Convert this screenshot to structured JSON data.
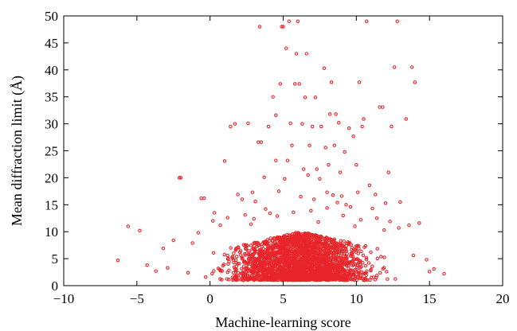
{
  "chart_data": {
    "type": "scatter",
    "title": "",
    "xlabel": "Machine-learning score",
    "ylabel": "Mean diffraction limit (Å)",
    "xlim": [
      -10,
      20
    ],
    "ylim": [
      0,
      50
    ],
    "xticks": [
      -10,
      -5,
      0,
      5,
      10,
      15,
      20
    ],
    "yticks": [
      0,
      5,
      10,
      15,
      20,
      25,
      30,
      35,
      40,
      45,
      50
    ],
    "xtick_labels": [
      "−10",
      "−5",
      "0",
      "5",
      "10",
      "15",
      "20"
    ],
    "ytick_labels": [
      "0",
      "5",
      "10",
      "15",
      "20",
      "25",
      "30",
      "35",
      "40",
      "45",
      "50"
    ],
    "grid": false,
    "legend": "none",
    "marker_color": "#e8262b",
    "series": [
      {
        "points": [
          [
            -6.3,
            4.7
          ],
          [
            -5.6,
            11.0
          ],
          [
            -4.8,
            10.2
          ],
          [
            -4.3,
            3.8
          ],
          [
            -3.7,
            2.7
          ],
          [
            -3.2,
            6.9
          ],
          [
            -2.9,
            3.3
          ],
          [
            -2.1,
            20.0
          ],
          [
            -2.0,
            20.0
          ],
          [
            -0.6,
            16.2
          ],
          [
            -0.4,
            16.2
          ],
          [
            0.3,
            13.5
          ],
          [
            0.7,
            11.2
          ],
          [
            1.0,
            23.1
          ],
          [
            1.4,
            29.5
          ],
          [
            1.7,
            30.0
          ],
          [
            1.9,
            16.9
          ],
          [
            2.2,
            16.0
          ],
          [
            2.6,
            30.1
          ],
          [
            2.9,
            17.3
          ],
          [
            3.1,
            15.6
          ],
          [
            3.3,
            26.6
          ],
          [
            3.5,
            26.6
          ],
          [
            3.4,
            48.0
          ],
          [
            3.7,
            20.1
          ],
          [
            3.8,
            14.2
          ],
          [
            4.0,
            29.5
          ],
          [
            4.1,
            13.4
          ],
          [
            4.3,
            35.0
          ],
          [
            4.5,
            31.6
          ],
          [
            4.5,
            23.2
          ],
          [
            4.7,
            17.5
          ],
          [
            4.8,
            37.4
          ],
          [
            4.9,
            48.0
          ],
          [
            5.0,
            48.0
          ],
          [
            5.1,
            19.8
          ],
          [
            5.2,
            44.0
          ],
          [
            5.3,
            23.2
          ],
          [
            5.4,
            49.0
          ],
          [
            5.5,
            30.1
          ],
          [
            5.6,
            26.0
          ],
          [
            5.8,
            37.4
          ],
          [
            5.9,
            43.0
          ],
          [
            6.0,
            49.0
          ],
          [
            6.1,
            37.4
          ],
          [
            6.2,
            16.5
          ],
          [
            6.3,
            30.0
          ],
          [
            6.4,
            21.6
          ],
          [
            6.5,
            34.9
          ],
          [
            6.6,
            43.0
          ],
          [
            6.7,
            20.5
          ],
          [
            6.8,
            26.0
          ],
          [
            7.0,
            29.5
          ],
          [
            7.1,
            16.0
          ],
          [
            7.2,
            34.9
          ],
          [
            7.3,
            21.6
          ],
          [
            7.5,
            19.8
          ],
          [
            7.6,
            29.5
          ],
          [
            7.8,
            40.3
          ],
          [
            7.9,
            25.6
          ],
          [
            8.0,
            17.3
          ],
          [
            8.1,
            22.4
          ],
          [
            8.2,
            31.8
          ],
          [
            8.3,
            37.7
          ],
          [
            8.4,
            16.8
          ],
          [
            8.5,
            26.0
          ],
          [
            8.6,
            31.8
          ],
          [
            8.7,
            15.4
          ],
          [
            8.8,
            30.2
          ],
          [
            8.9,
            21.0
          ],
          [
            9.0,
            16.6
          ],
          [
            9.2,
            24.8
          ],
          [
            9.3,
            15.0
          ],
          [
            9.5,
            29.2
          ],
          [
            9.6,
            14.6
          ],
          [
            9.8,
            27.7
          ],
          [
            10.0,
            22.4
          ],
          [
            10.1,
            17.3
          ],
          [
            10.2,
            37.7
          ],
          [
            10.4,
            29.5
          ],
          [
            10.5,
            30.9
          ],
          [
            10.7,
            49.0
          ],
          [
            10.9,
            18.6
          ],
          [
            11.1,
            14.3
          ],
          [
            11.3,
            16.9
          ],
          [
            11.6,
            33.1
          ],
          [
            11.8,
            33.1
          ],
          [
            12.0,
            15.3
          ],
          [
            12.2,
            21.0
          ],
          [
            12.4,
            29.5
          ],
          [
            12.6,
            40.5
          ],
          [
            12.8,
            49.0
          ],
          [
            13.0,
            15.5
          ],
          [
            13.4,
            30.9
          ],
          [
            13.6,
            11.2
          ],
          [
            13.8,
            40.5
          ],
          [
            14.0,
            37.7
          ],
          [
            14.3,
            11.6
          ],
          [
            15.0,
            2.6
          ],
          [
            15.3,
            3.1
          ],
          [
            16.0,
            2.2
          ],
          [
            14.8,
            4.8
          ],
          [
            13.9,
            5.6
          ],
          [
            -1.5,
            2.4
          ],
          [
            -0.8,
            9.8
          ],
          [
            0.2,
            12.0
          ],
          [
            1.2,
            12.6
          ],
          [
            2.4,
            13.1
          ],
          [
            3.0,
            12.4
          ],
          [
            4.6,
            12.9
          ],
          [
            5.7,
            13.6
          ],
          [
            6.9,
            13.9
          ],
          [
            8.0,
            14.4
          ],
          [
            9.1,
            13.0
          ],
          [
            10.3,
            12.2
          ],
          [
            11.4,
            12.5
          ],
          [
            12.3,
            11.9
          ],
          [
            12.9,
            10.7
          ],
          [
            -2.5,
            8.4
          ],
          [
            -1.2,
            7.9
          ],
          [
            2.8,
            11.4
          ],
          [
            7.4,
            11.8
          ],
          [
            9.9,
            11.0
          ],
          [
            11.9,
            10.3
          ]
        ],
        "dense_core": {
          "note": "Dense cloud of several thousand points concentrated at x ≈ -3…14, y ≈ 1…10",
          "count": 2600,
          "x_range": [
            -3.5,
            14.5
          ],
          "x_center": 6.2,
          "y_range": [
            1.0,
            10.0
          ],
          "y_mode": 3.5
        }
      }
    ]
  }
}
